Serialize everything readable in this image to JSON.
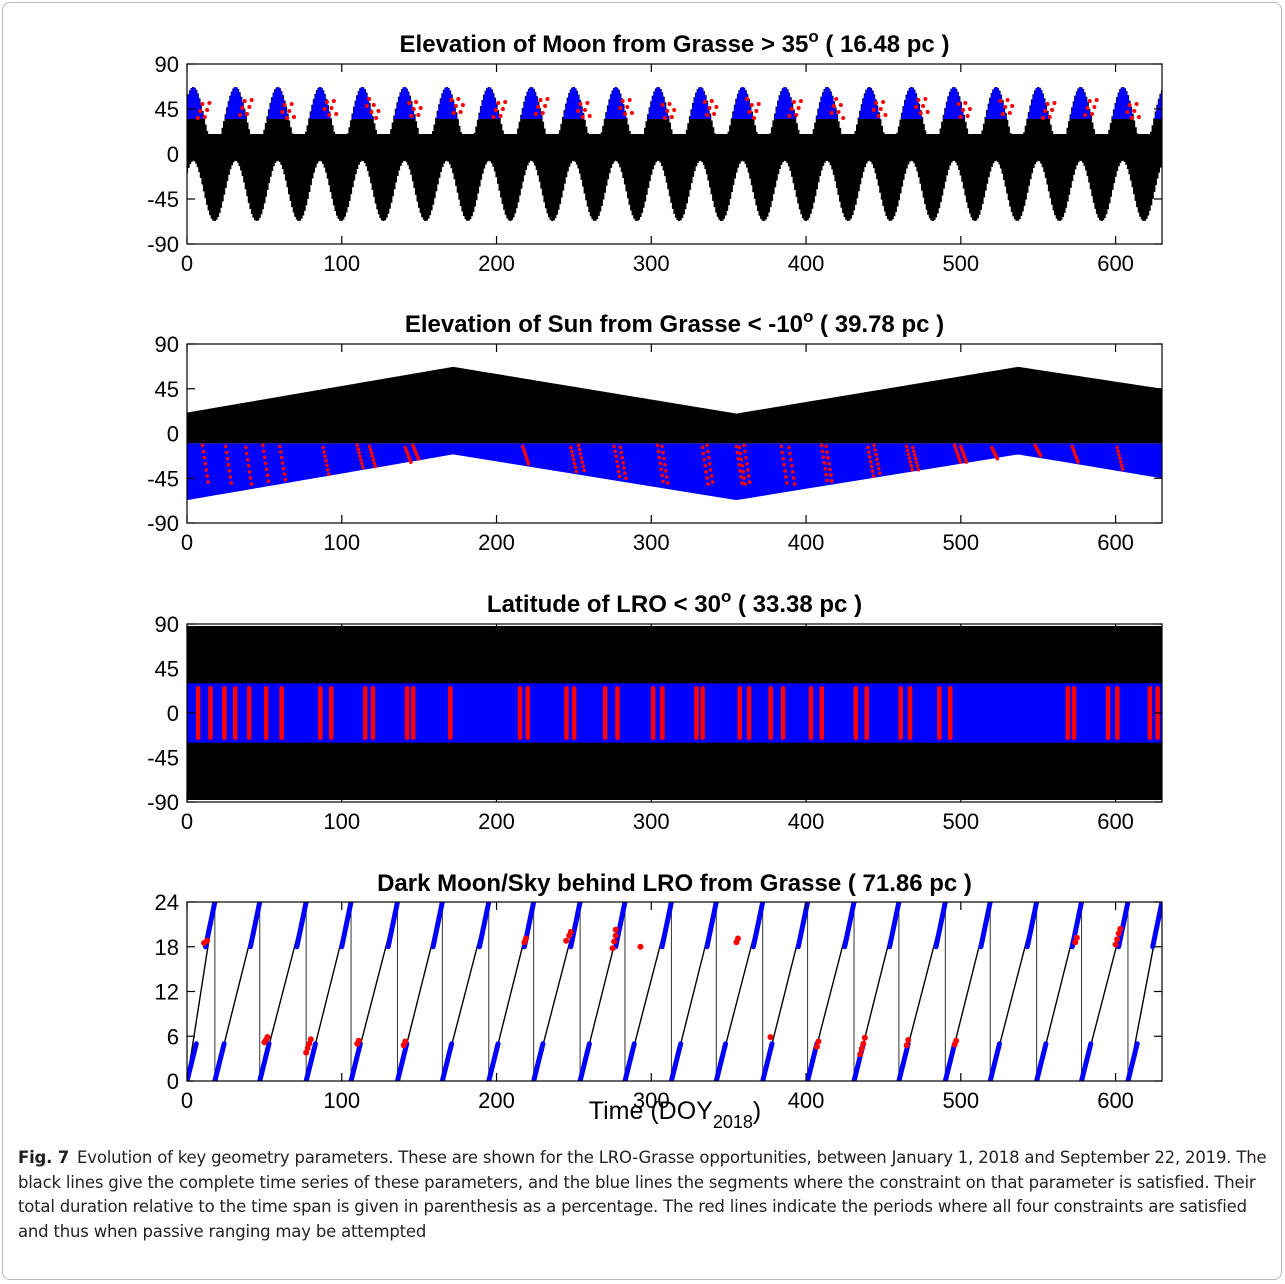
{
  "figure": {
    "xlabel_main": "Time (DOY",
    "xlabel_sub": "2018",
    "xlabel_close": ")"
  },
  "caption": {
    "label": "Fig. 7",
    "text": "Evolution of key geometry parameters. These are shown for the LRO-Grasse opportunities, between January 1, 2018 and September 22, 2019. The black lines give the complete time series of these parameters, and the blue lines the segments where the constraint on that parameter is satisfied. Their total duration relative to the time span is given in parenthesis as a percentage. The red lines indicate the periods where all four constraints are satisfied and thus when passive ranging may be attempted"
  },
  "colors": {
    "full_series": "#000000",
    "constraint_satisfied": "#0000ff",
    "all_constraints": "#ff0000",
    "axes": "#000000"
  },
  "chart_data": [
    {
      "type": "area",
      "title": "Elevation of Moon from Grasse > 35",
      "title_sup": "o",
      "title_tail": " ( 16.48 pc )",
      "xlim": [
        0,
        630
      ],
      "ylim": [
        -90,
        90
      ],
      "xticks": [
        0,
        100,
        200,
        300,
        400,
        500,
        600
      ],
      "yticks": [
        90,
        45,
        0,
        -45,
        -90
      ],
      "series": [
        {
          "role": "full",
          "min_envelope": [
            [
              0,
              -26
            ],
            [
              13.5,
              -67
            ],
            [
              27,
              -26
            ],
            [
              630,
              -26
            ]
          ],
          "max_envelope_peak": 67,
          "period_days": 27.3
        },
        {
          "role": "satisfied",
          "threshold": 35,
          "peak": 67,
          "period_days": 27.3,
          "percentage": 16.48
        }
      ]
    },
    {
      "type": "area",
      "title": "Elevation of Sun from Grasse < -10",
      "title_sup": "o",
      "title_tail": " ( 39.78 pc )",
      "xlim": [
        0,
        630
      ],
      "ylim": [
        -90,
        90
      ],
      "xticks": [
        0,
        100,
        200,
        300,
        400,
        500,
        600
      ],
      "yticks": [
        90,
        45,
        0,
        -45,
        -90
      ],
      "series": [
        {
          "role": "full",
          "noon_max": [
            [
              0,
              21
            ],
            [
              172,
              67
            ],
            [
              355,
              20
            ],
            [
              537,
              67
            ],
            [
              630,
              45
            ]
          ],
          "midnight_min": [
            [
              0,
              -67
            ],
            [
              172,
              -21
            ],
            [
              355,
              -67
            ],
            [
              537,
              -21
            ],
            [
              630,
              -45
            ]
          ]
        },
        {
          "role": "satisfied",
          "threshold": -10,
          "percentage": 39.78
        }
      ]
    },
    {
      "type": "area",
      "title": "Latitude of LRO < 30",
      "title_sup": "o",
      "title_tail": " ( 33.38 pc )",
      "xlim": [
        0,
        630
      ],
      "ylim": [
        -90,
        90
      ],
      "xticks": [
        0,
        100,
        200,
        300,
        400,
        500,
        600
      ],
      "yticks": [
        90,
        45,
        0,
        -45,
        -90
      ],
      "series": [
        {
          "role": "full",
          "range": [
            -88,
            88
          ]
        },
        {
          "role": "satisfied",
          "range": [
            -30,
            30
          ],
          "percentage": 33.38
        },
        {
          "role": "all",
          "x": [
            7,
            15,
            24,
            31,
            40,
            51,
            61,
            86,
            93,
            115,
            120,
            142,
            146,
            170,
            215,
            220,
            245,
            250,
            270,
            278,
            301,
            307,
            329,
            333,
            357,
            363,
            377,
            385,
            403,
            410,
            432,
            439,
            461,
            467,
            486,
            493,
            569,
            573,
            595,
            601,
            622,
            627
          ]
        }
      ]
    },
    {
      "type": "scatter",
      "title": "Dark Moon/Sky behind LRO from Grasse ( 71.86 pc )",
      "xlim": [
        0,
        630
      ],
      "ylim": [
        0,
        24
      ],
      "xticks": [
        0,
        100,
        200,
        300,
        400,
        500,
        600
      ],
      "yticks": [
        24,
        18,
        12,
        6,
        0
      ],
      "series": [
        {
          "role": "full",
          "wrap_days": [
            0,
            18,
            47,
            77,
            106,
            136,
            165,
            195,
            224,
            254,
            283,
            313,
            342,
            372,
            401,
            431,
            460,
            490,
            519,
            549,
            578,
            608,
            630
          ]
        },
        {
          "role": "satisfied",
          "percentage": 71.86
        },
        {
          "role": "all",
          "points": [
            [
              11,
              18.5
            ],
            [
              13,
              18.8
            ],
            [
              50,
              5.2
            ],
            [
              51,
              5.5
            ],
            [
              52,
              5.9
            ],
            [
              77,
              3.8
            ],
            [
              78,
              4.4
            ],
            [
              79,
              5.0
            ],
            [
              80,
              5.6
            ],
            [
              110,
              5.0
            ],
            [
              111,
              5.4
            ],
            [
              140,
              4.8
            ],
            [
              141,
              5.3
            ],
            [
              218,
              18.6
            ],
            [
              219,
              19.1
            ],
            [
              245,
              18.8
            ],
            [
              247,
              19.5
            ],
            [
              248,
              20.0
            ],
            [
              275,
              17.8
            ],
            [
              276,
              18.7
            ],
            [
              277,
              19.5
            ],
            [
              277,
              20.3
            ],
            [
              293,
              18.0
            ],
            [
              355,
              18.6
            ],
            [
              356,
              19.1
            ],
            [
              377,
              5.9
            ],
            [
              407,
              4.6
            ],
            [
              408,
              5.3
            ],
            [
              435,
              3.6
            ],
            [
              436,
              4.3
            ],
            [
              437,
              5.0
            ],
            [
              438,
              5.8
            ],
            [
              465,
              4.8
            ],
            [
              466,
              5.5
            ],
            [
              496,
              4.9
            ],
            [
              497,
              5.4
            ],
            [
              574,
              18.6
            ],
            [
              575,
              19.2
            ],
            [
              600,
              18.3
            ],
            [
              601,
              19.0
            ],
            [
              602,
              19.8
            ],
            [
              603,
              20.4
            ]
          ]
        }
      ]
    }
  ]
}
